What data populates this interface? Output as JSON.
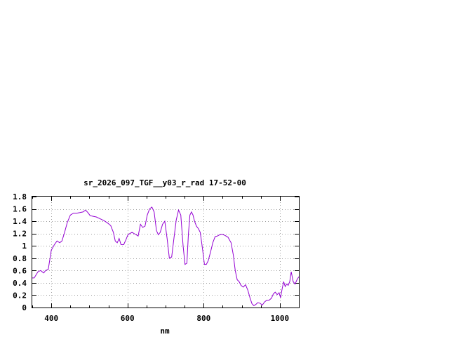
{
  "chart_data": {
    "type": "line",
    "title": "sr_2026_097_TGF__y03_r_rad 17-52-00",
    "xlabel": "nm",
    "ylabel": "",
    "xlim": [
      350,
      1050
    ],
    "ylim": [
      0,
      1.8
    ],
    "xticks": [
      400,
      600,
      800,
      1000
    ],
    "xtick_labels": [
      "400",
      "600",
      "800",
      "1000"
    ],
    "yticks": [
      0,
      0.2,
      0.4,
      0.6,
      0.8,
      1,
      1.2,
      1.4,
      1.6,
      1.8
    ],
    "ytick_labels": [
      "0",
      "0.2",
      "0.4",
      "0.6",
      "0.8",
      "1",
      "1.2",
      "1.4",
      "1.6",
      "1.8"
    ],
    "grid": true,
    "series": [
      {
        "color": "#9400d3",
        "x": [
          350,
          355,
          365,
          372,
          380,
          385,
          392,
          400,
          408,
          415,
          422,
          428,
          435,
          442,
          450,
          458,
          466,
          475,
          483,
          490,
          496,
          502,
          510,
          518,
          528,
          538,
          548,
          556,
          563,
          568,
          573,
          578,
          583,
          590,
          596,
          601,
          606,
          612,
          620,
          628,
          634,
          640,
          646,
          652,
          658,
          664,
          670,
          676,
          681,
          686,
          692,
          698,
          704,
          710,
          716,
          722,
          728,
          734,
          740,
          746,
          751,
          756,
          760,
          764,
          768,
          772,
          776,
          781,
          786,
          791,
          796,
          802,
          807,
          812,
          818,
          824,
          830,
          836,
          842,
          848,
          856,
          864,
          872,
          878,
          883,
          888,
          893,
          898,
          904,
          910,
          916,
          922,
          927,
          932,
          937,
          942,
          948,
          954,
          960,
          966,
          972,
          978,
          983,
          988,
          993,
          998,
          1002,
          1006,
          1010,
          1014,
          1018,
          1022,
          1026,
          1030,
          1035,
          1040,
          1045,
          1050
        ],
        "y": [
          0.48,
          0.48,
          0.58,
          0.6,
          0.56,
          0.6,
          0.62,
          0.93,
          1.02,
          1.08,
          1.05,
          1.08,
          1.22,
          1.38,
          1.5,
          1.53,
          1.53,
          1.54,
          1.55,
          1.58,
          1.54,
          1.49,
          1.48,
          1.47,
          1.44,
          1.41,
          1.37,
          1.33,
          1.22,
          1.08,
          1.05,
          1.12,
          1.02,
          1.02,
          1.1,
          1.18,
          1.2,
          1.22,
          1.19,
          1.16,
          1.35,
          1.3,
          1.32,
          1.5,
          1.6,
          1.63,
          1.55,
          1.25,
          1.18,
          1.22,
          1.35,
          1.4,
          1.12,
          0.8,
          0.82,
          1.12,
          1.42,
          1.58,
          1.5,
          1.0,
          0.7,
          0.72,
          1.2,
          1.5,
          1.55,
          1.5,
          1.4,
          1.32,
          1.28,
          1.22,
          1.0,
          0.7,
          0.7,
          0.76,
          0.9,
          1.05,
          1.15,
          1.16,
          1.18,
          1.19,
          1.17,
          1.14,
          1.05,
          0.85,
          0.6,
          0.45,
          0.42,
          0.36,
          0.33,
          0.37,
          0.28,
          0.15,
          0.06,
          0.03,
          0.05,
          0.08,
          0.07,
          0.04,
          0.09,
          0.12,
          0.12,
          0.15,
          0.22,
          0.25,
          0.21,
          0.24,
          0.16,
          0.3,
          0.42,
          0.34,
          0.38,
          0.36,
          0.42,
          0.58,
          0.42,
          0.38,
          0.45,
          0.5
        ]
      }
    ]
  }
}
